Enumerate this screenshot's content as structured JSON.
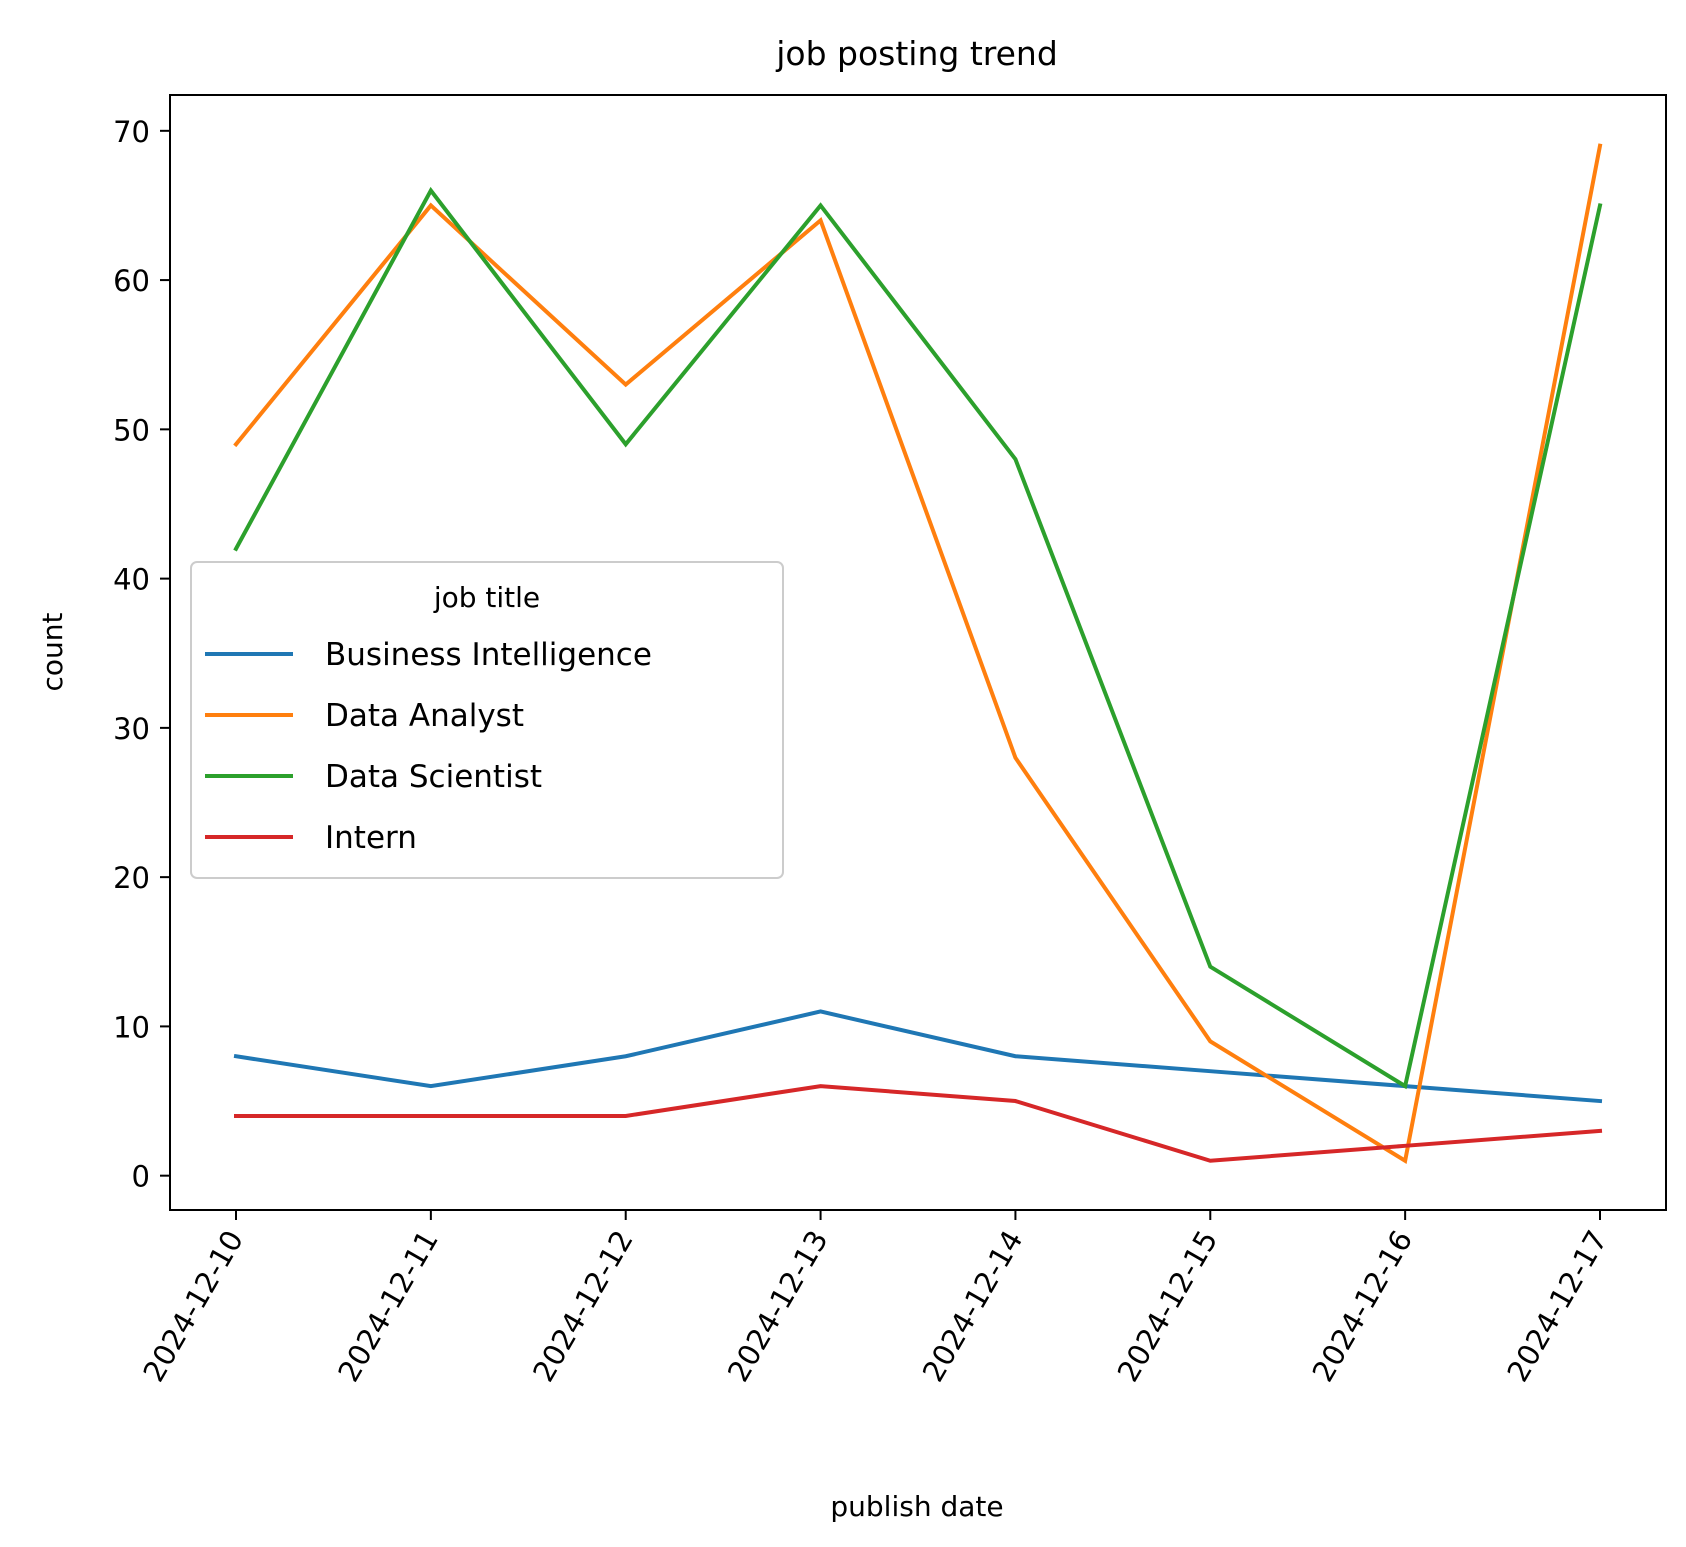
{
  "chart_data": {
    "type": "line",
    "title": "job posting trend",
    "xlabel": "publish date",
    "ylabel": "count",
    "categories": [
      "2024-12-10",
      "2024-12-11",
      "2024-12-12",
      "2024-12-13",
      "2024-12-14",
      "2024-12-15",
      "2024-12-16",
      "2024-12-17"
    ],
    "ylim": [
      -2.3,
      72.4
    ],
    "yticks": [
      0,
      10,
      20,
      30,
      40,
      50,
      60,
      70
    ],
    "grid": false,
    "legend": {
      "title": "job title",
      "placement": "center-left"
    },
    "series": [
      {
        "name": "Business Intelligence",
        "color": "#1f77b4",
        "values": [
          8,
          6,
          8,
          11,
          8,
          7,
          6,
          5
        ]
      },
      {
        "name": "Data Analyst",
        "color": "#ff7f0e",
        "values": [
          49,
          65,
          53,
          64,
          28,
          9,
          1,
          69
        ]
      },
      {
        "name": "Data Scientist",
        "color": "#2ca02c",
        "values": [
          42,
          66,
          49,
          65,
          48,
          14,
          6,
          65
        ]
      },
      {
        "name": "Intern",
        "color": "#d62728",
        "values": [
          4,
          4,
          4,
          6,
          5,
          1,
          2,
          3
        ]
      }
    ]
  }
}
